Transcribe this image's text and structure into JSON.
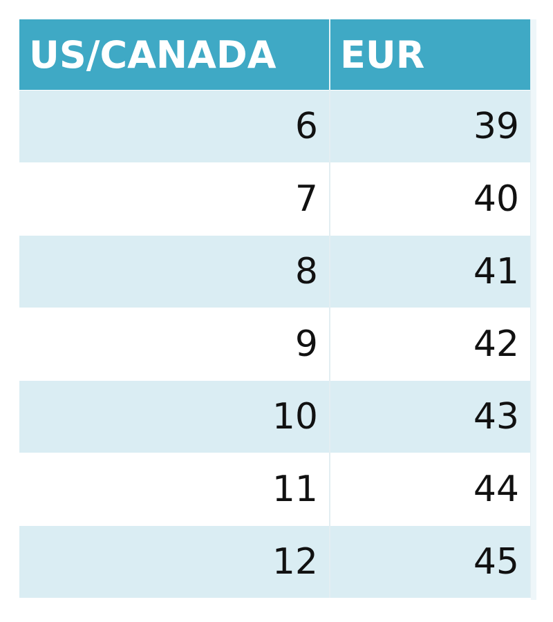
{
  "table": {
    "header": [
      "US/CANADA",
      "EUR"
    ],
    "rows": [
      [
        6,
        39
      ],
      [
        7,
        40
      ],
      [
        8,
        41
      ],
      [
        9,
        42
      ],
      [
        10,
        43
      ],
      [
        11,
        44
      ],
      [
        12,
        45
      ]
    ]
  }
}
